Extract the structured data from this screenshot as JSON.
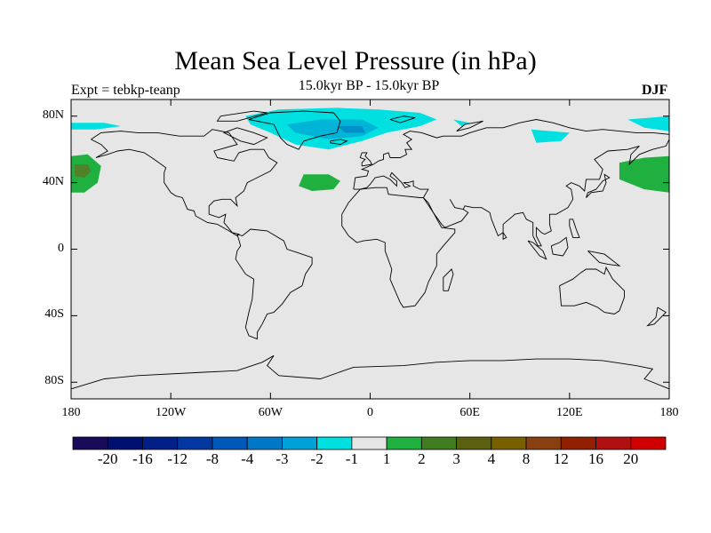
{
  "title": "Mean Sea Level Pressure (in hPa)",
  "subtitle": "15.0kyr BP - 15.0kyr BP",
  "experiment": "Expt = tebkp-teanp",
  "season": "DJF",
  "map": {
    "projection": "cylindrical-equidistant",
    "lon_range": [
      -180,
      180
    ],
    "lat_range": [
      -90,
      90
    ],
    "background_color": "#e6e6e6",
    "lat_ticks": [
      {
        "value": 80,
        "label": "80N"
      },
      {
        "value": 40,
        "label": "40N"
      },
      {
        "value": 0,
        "label": "0"
      },
      {
        "value": -40,
        "label": "40S"
      },
      {
        "value": -80,
        "label": "80S"
      }
    ],
    "lon_ticks": [
      {
        "value": -180,
        "label": "180"
      },
      {
        "value": -120,
        "label": "120W"
      },
      {
        "value": -60,
        "label": "60W"
      },
      {
        "value": 0,
        "label": "0"
      },
      {
        "value": 60,
        "label": "60E"
      },
      {
        "value": 120,
        "label": "120E"
      },
      {
        "value": 180,
        "label": "180"
      }
    ]
  },
  "anomaly_regions": [
    {
      "name": "arctic-greenland-low",
      "bin": "-1 to -2",
      "color": "#00e0e0",
      "points": [
        [
          -75,
          80
        ],
        [
          -55,
          84
        ],
        [
          -20,
          85
        ],
        [
          5,
          84
        ],
        [
          30,
          82
        ],
        [
          40,
          78
        ],
        [
          30,
          74
        ],
        [
          10,
          70
        ],
        [
          -5,
          65
        ],
        [
          -25,
          60
        ],
        [
          -45,
          63
        ],
        [
          -60,
          70
        ],
        [
          -72,
          75
        ]
      ]
    },
    {
      "name": "arctic-greenland-low-inner",
      "bin": "-2 to -3",
      "color": "#00b4d8",
      "points": [
        [
          -50,
          75
        ],
        [
          -30,
          78
        ],
        [
          -5,
          78
        ],
        [
          5,
          73
        ],
        [
          -5,
          68
        ],
        [
          -25,
          66
        ],
        [
          -45,
          70
        ]
      ]
    },
    {
      "name": "arctic-greenland-low-core",
      "bin": "-3 to -4",
      "color": "#0090c8",
      "points": [
        [
          -20,
          74
        ],
        [
          -5,
          74
        ],
        [
          -3,
          70
        ],
        [
          -15,
          70
        ]
      ]
    },
    {
      "name": "barents-low",
      "bin": "-1 to -2",
      "color": "#00e0e0",
      "points": [
        [
          50,
          78
        ],
        [
          60,
          76
        ],
        [
          55,
          74
        ]
      ]
    },
    {
      "name": "siberia-low",
      "bin": "-1 to -2",
      "color": "#00e0e0",
      "points": [
        [
          97,
          72
        ],
        [
          120,
          70
        ],
        [
          115,
          65
        ],
        [
          100,
          64
        ]
      ]
    },
    {
      "name": "bering-west-low",
      "bin": "-1 to -2",
      "color": "#00e0e0",
      "points": [
        [
          -180,
          76
        ],
        [
          -160,
          76
        ],
        [
          -150,
          74
        ],
        [
          -165,
          72
        ],
        [
          -180,
          72
        ]
      ]
    },
    {
      "name": "bering-east-low",
      "bin": "-1 to -2",
      "color": "#00e0e0",
      "points": [
        [
          155,
          78
        ],
        [
          180,
          80
        ],
        [
          180,
          71
        ],
        [
          165,
          73
        ]
      ]
    },
    {
      "name": "north-pacific-high-west",
      "bin": "1 to 2",
      "color": "#20b040",
      "points": [
        [
          -180,
          56
        ],
        [
          -170,
          57
        ],
        [
          -162,
          50
        ],
        [
          -164,
          40
        ],
        [
          -172,
          34
        ],
        [
          -180,
          34
        ]
      ]
    },
    {
      "name": "north-pacific-high-east",
      "bin": "1 to 2",
      "color": "#20b040",
      "points": [
        [
          150,
          52
        ],
        [
          165,
          55
        ],
        [
          180,
          56
        ],
        [
          180,
          34
        ],
        [
          165,
          36
        ],
        [
          150,
          42
        ]
      ]
    },
    {
      "name": "north-pacific-high-core",
      "bin": "2 to 3",
      "color": "#508028",
      "points": [
        [
          -178,
          51
        ],
        [
          -170,
          51
        ],
        [
          -168,
          47
        ],
        [
          -172,
          43
        ],
        [
          -178,
          44
        ]
      ]
    },
    {
      "name": "north-atlantic-high",
      "bin": "1 to 2",
      "color": "#20b040",
      "points": [
        [
          -40,
          45
        ],
        [
          -25,
          45
        ],
        [
          -18,
          41
        ],
        [
          -22,
          36
        ],
        [
          -35,
          35
        ],
        [
          -43,
          38
        ]
      ]
    }
  ],
  "colorbar": {
    "colors": [
      "#1a0a5a",
      "#001070",
      "#002088",
      "#0038a0",
      "#0058b8",
      "#0078c8",
      "#00a0d8",
      "#00e0e0",
      "#e6e6e6",
      "#20b040",
      "#407c20",
      "#5a6010",
      "#786000",
      "#884010",
      "#902000",
      "#b01010",
      "#d00000"
    ],
    "labels": [
      "-20",
      "-16",
      "-12",
      "-8",
      "-4",
      "-3",
      "-2",
      "-1",
      "1",
      "2",
      "3",
      "4",
      "8",
      "12",
      "16",
      "20"
    ]
  }
}
